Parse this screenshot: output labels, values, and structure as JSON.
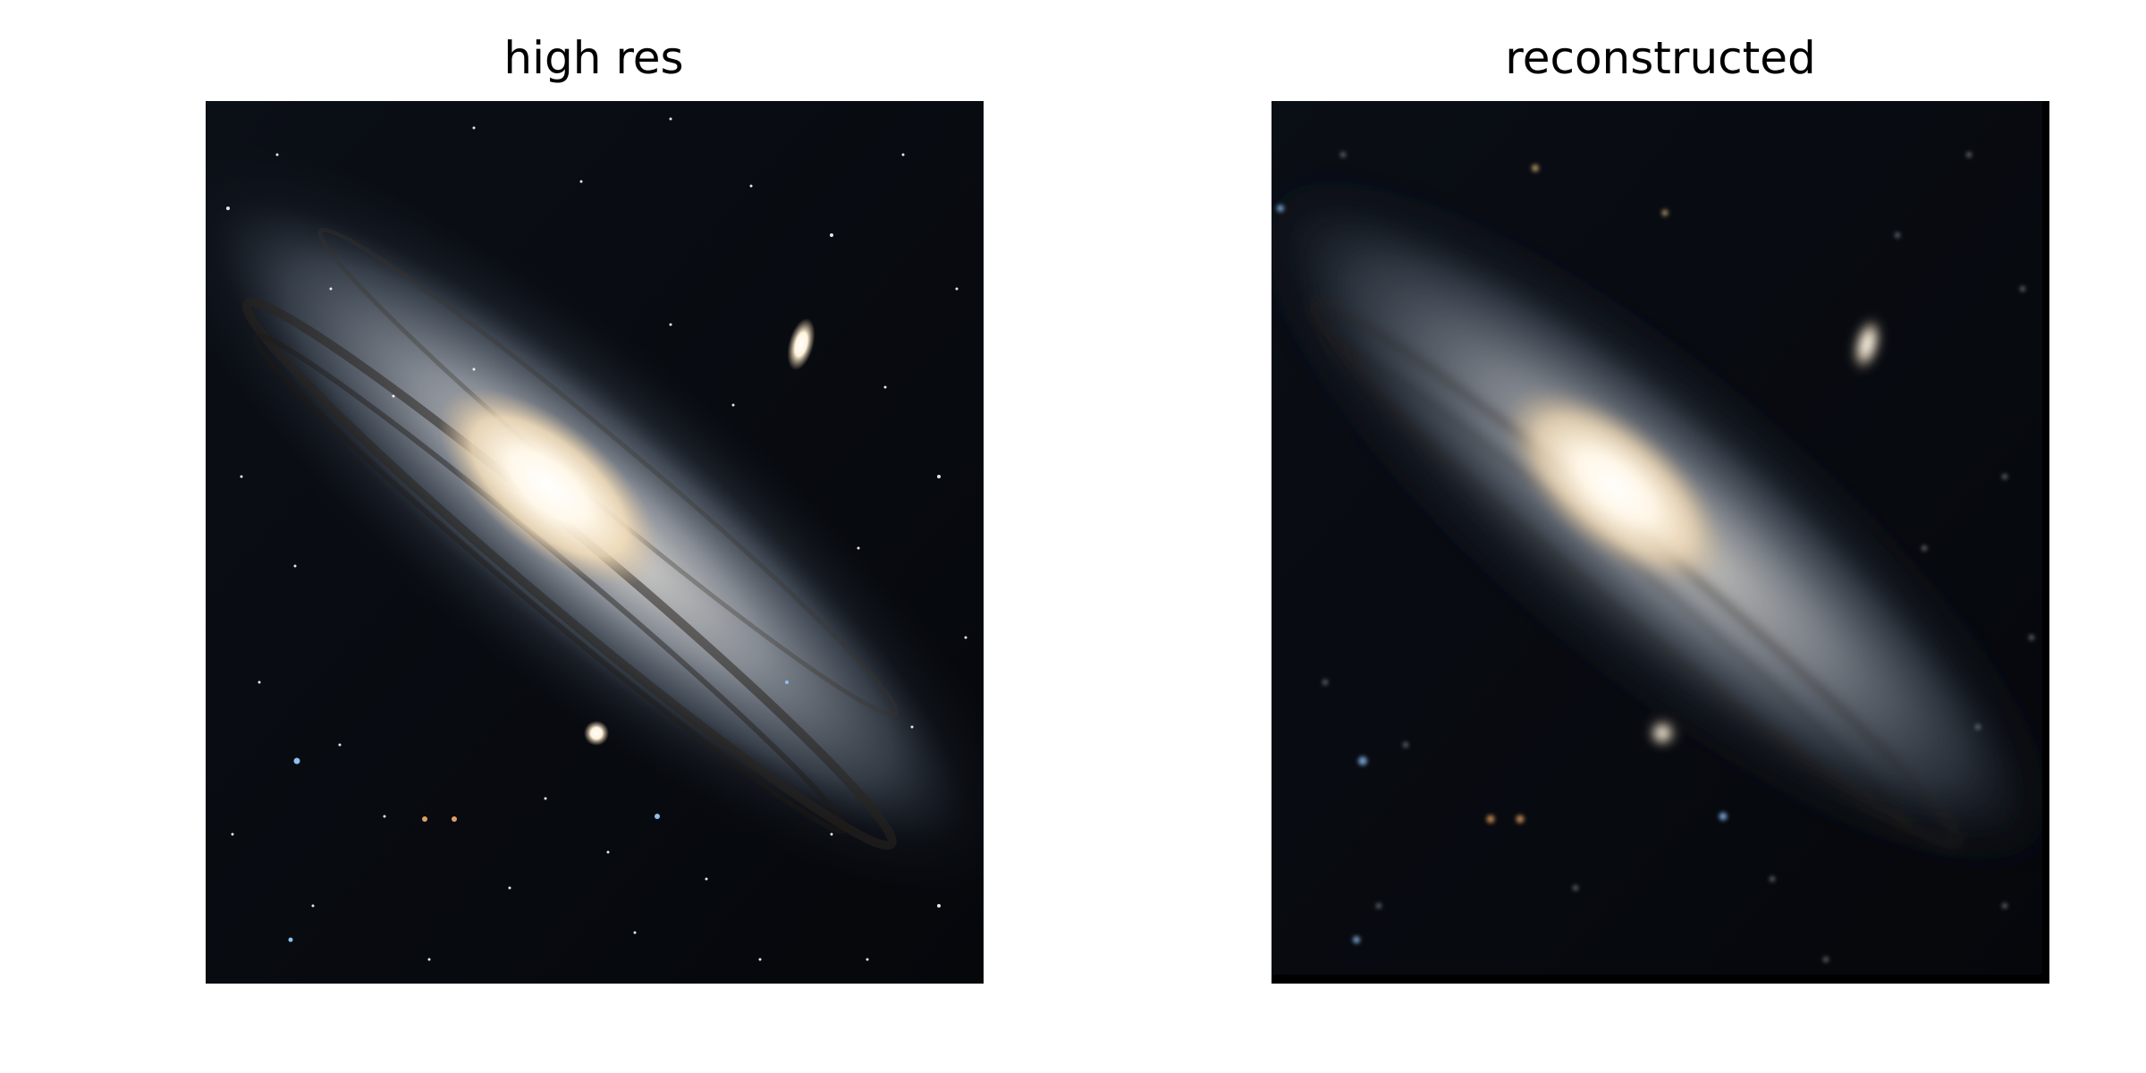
{
  "figure": {
    "panels": [
      {
        "title": "high res",
        "image": "andromeda-galaxy-high-resolution"
      },
      {
        "title": "reconstructed",
        "image": "andromeda-galaxy-reconstructed"
      }
    ],
    "colors": {
      "space": "#05070c",
      "core": "#fff6e4",
      "disk": "#7f8a99",
      "dust": "#2b2520",
      "star_blue": "#7fb2e6",
      "star_orange": "#d99656"
    }
  }
}
